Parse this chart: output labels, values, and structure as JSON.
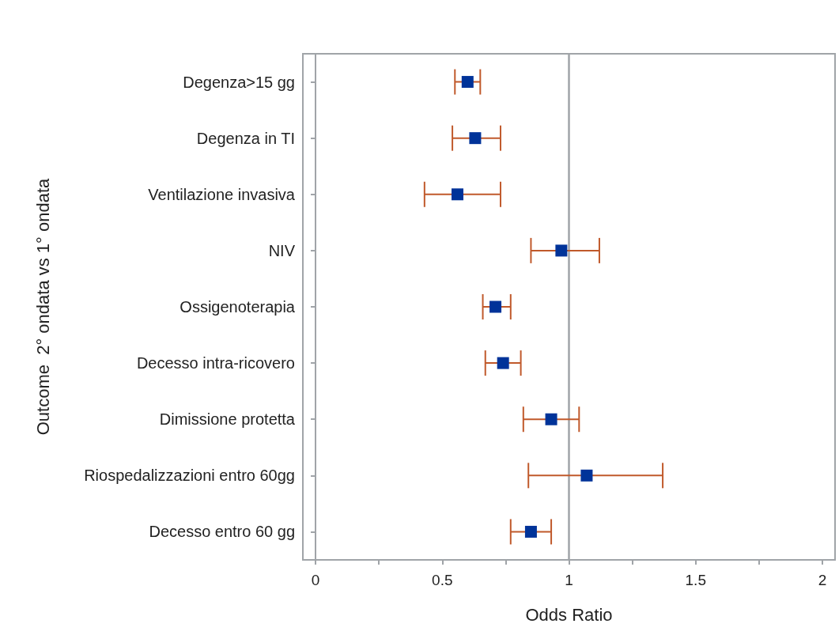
{
  "chart_data": {
    "type": "scatter",
    "orientation": "horizontal",
    "xlabel": "Odds Ratio",
    "ylabel": "Outcome  2° ondata vs 1° ondata",
    "categories": [
      "Degenza>15 gg",
      "Degenza in TI",
      "Ventilazione invasiva",
      "NIV",
      "Ossigenoterapia",
      "Decesso intra-ricovero",
      "Dimissione protetta",
      "Riospedalizzazioni entro 60gg",
      "Decesso entro 60 gg"
    ],
    "series": [
      {
        "color": "#003399",
        "values": [
          0.6,
          0.63,
          0.56,
          0.97,
          0.71,
          0.74,
          0.93,
          1.07,
          0.85
        ],
        "errors": [
          [
            0.55,
            0.65
          ],
          [
            0.54,
            0.73
          ],
          [
            0.43,
            0.73
          ],
          [
            0.85,
            1.12
          ],
          [
            0.66,
            0.77
          ],
          [
            0.67,
            0.81
          ],
          [
            0.82,
            1.04
          ],
          [
            0.84,
            1.37
          ],
          [
            0.77,
            0.93
          ]
        ]
      }
    ],
    "xlim": [
      -0.05,
      2.05
    ],
    "xticks": [
      0,
      {
        "value": 0.25,
        "label": null
      },
      0.5,
      {
        "value": 0.75,
        "label": null
      },
      1,
      {
        "value": 1.25,
        "label": null
      },
      1.5,
      {
        "value": 1.75,
        "label": null
      },
      2
    ],
    "ref_lines": [
      {
        "axis": "x",
        "value": 1,
        "color": "#a0a4a8"
      }
    ],
    "marker": "square",
    "grid": false
  }
}
